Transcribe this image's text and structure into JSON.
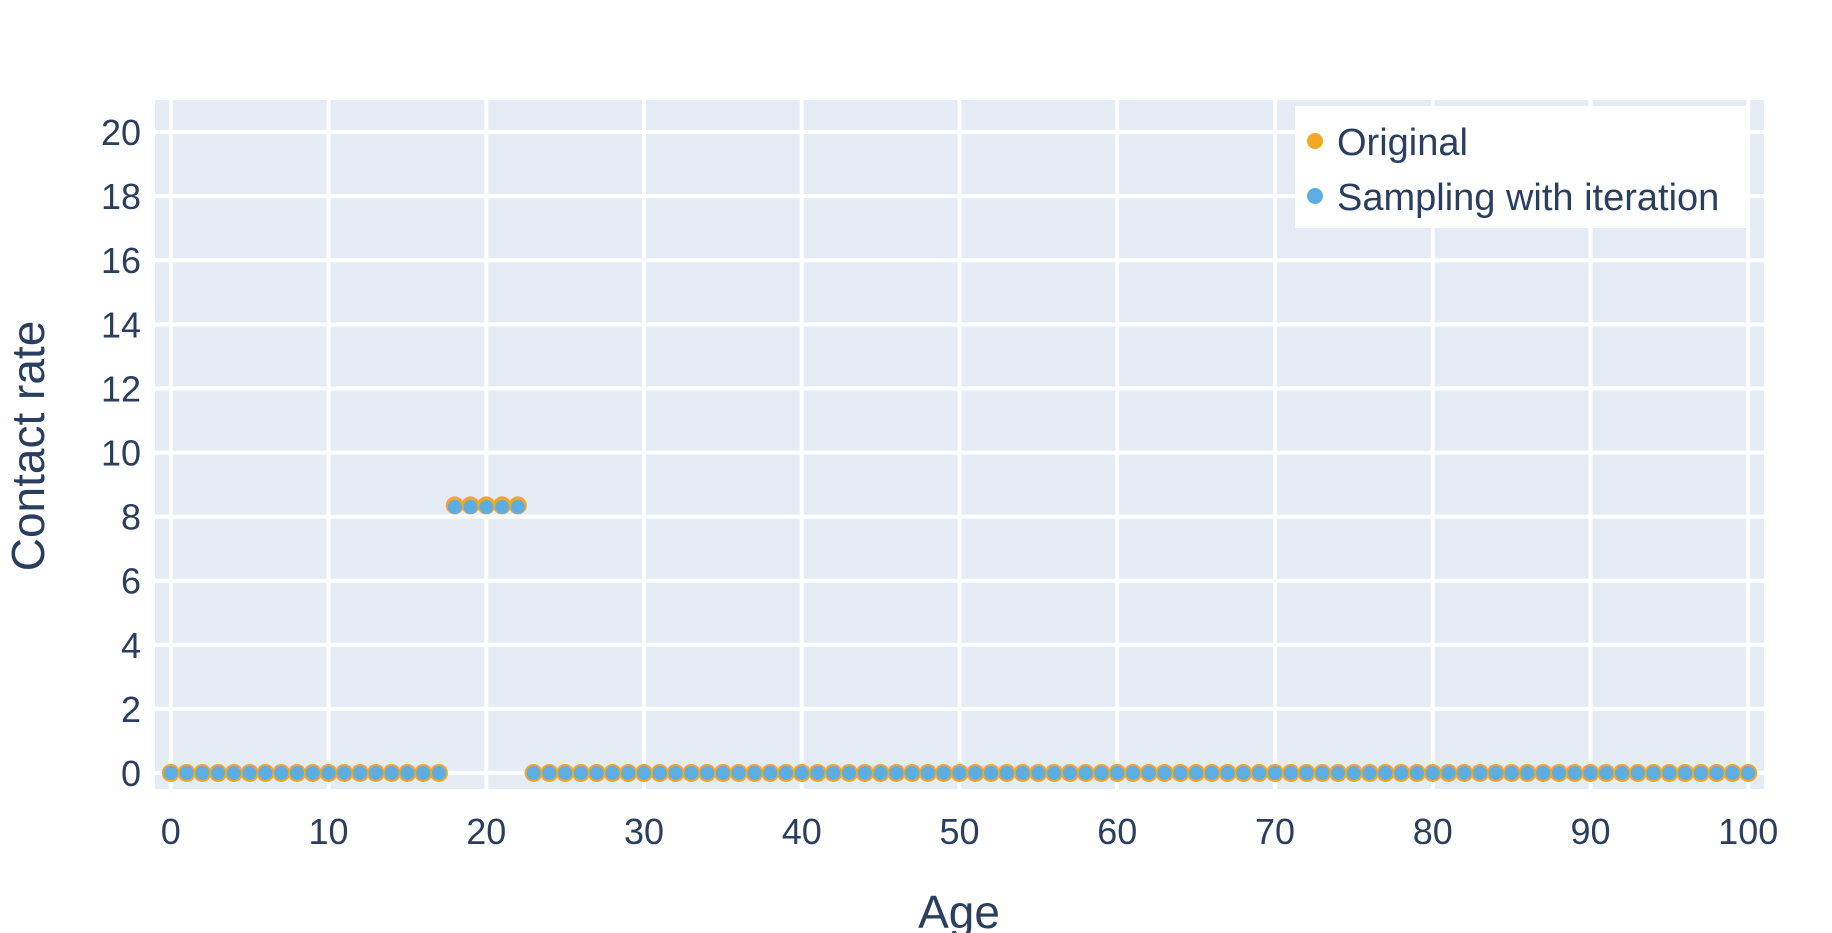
{
  "chart_data": {
    "type": "scatter",
    "xlabel": "Age",
    "ylabel": "Contact rate",
    "xlim": [
      -1,
      101
    ],
    "ylim": [
      -0.5,
      21
    ],
    "x_ticks": [
      0,
      10,
      20,
      30,
      40,
      50,
      60,
      70,
      80,
      90,
      100
    ],
    "y_ticks": [
      0,
      2,
      4,
      6,
      8,
      10,
      12,
      14,
      16,
      18,
      20
    ],
    "grid": true,
    "legend_position": "top-right",
    "background_color": "#e5ecf6",
    "series": [
      {
        "name": "Original",
        "color": "#f5a623",
        "points": {
          "x_range": [
            0,
            100
          ],
          "default_y": 0,
          "overrides": {
            "18": 8.35,
            "19": 8.35,
            "20": 8.35,
            "21": 8.35,
            "22": 8.35
          }
        }
      },
      {
        "name": "Sampling with iteration",
        "color": "#5dade2",
        "points": {
          "x_range": [
            0,
            100
          ],
          "default_y": 0,
          "overrides": {
            "18": 8.3,
            "19": 8.3,
            "20": 8.3,
            "21": 8.3,
            "22": 8.3
          }
        }
      }
    ]
  }
}
